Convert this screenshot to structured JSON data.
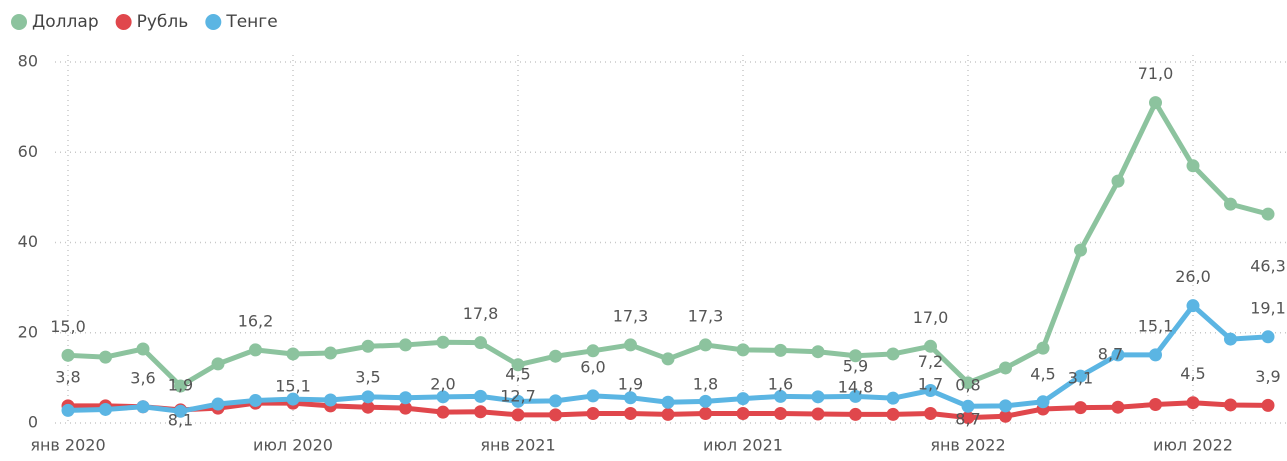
{
  "chart_data": {
    "type": "line",
    "categories": [
      "янв 2020",
      null,
      null,
      null,
      null,
      null,
      "июл 2020",
      null,
      null,
      null,
      null,
      null,
      "янв 2021",
      null,
      null,
      null,
      null,
      null,
      "июл 2021",
      null,
      null,
      null,
      null,
      null,
      "янв 2022",
      null,
      null,
      null,
      null,
      null,
      "июл 2022",
      null,
      null
    ],
    "series": [
      {
        "name": "Доллар",
        "color": "#8cc39e",
        "values": [
          15.0,
          14.6,
          16.4,
          8.2,
          13.1,
          16.2,
          15.3,
          15.5,
          17.0,
          17.3,
          17.9,
          17.8,
          12.9,
          14.8,
          16.0,
          17.3,
          14.2,
          17.3,
          16.2,
          16.1,
          15.8,
          14.9,
          15.3,
          17.0,
          8.9,
          12.2,
          16.6,
          38.3,
          53.6,
          71.0,
          57.0,
          48.5,
          46.3
        ],
        "value_labels": [
          "15,0",
          null,
          null,
          null,
          null,
          "16,2",
          null,
          null,
          null,
          null,
          null,
          "17,8",
          null,
          null,
          null,
          "17,3",
          null,
          "17,3",
          null,
          null,
          null,
          null,
          null,
          "17,0",
          null,
          null,
          null,
          null,
          null,
          "71,0",
          null,
          null,
          "46,3"
        ]
      },
      {
        "name": "Рубль",
        "color": "#e0474c",
        "values": [
          3.8,
          3.8,
          3.6,
          2.9,
          3.3,
          4.4,
          4.4,
          3.8,
          3.5,
          3.3,
          2.4,
          2.5,
          1.8,
          1.8,
          2.1,
          2.1,
          1.9,
          2.1,
          2.1,
          2.1,
          2.0,
          1.9,
          1.9,
          2.1,
          1.2,
          1.5,
          3.1,
          3.4,
          3.5,
          4.1,
          4.5,
          4.0,
          3.9
        ],
        "value_labels": [
          "3,8",
          null,
          "3,6",
          null,
          null,
          null,
          null,
          null,
          null,
          null,
          null,
          null,
          null,
          null,
          null,
          null,
          null,
          null,
          null,
          null,
          null,
          null,
          null,
          null,
          null,
          null,
          null,
          null,
          null,
          null,
          "4,5",
          null,
          "3,9"
        ]
      },
      {
        "name": "Тенге",
        "color": "#5bb5e3",
        "values": [
          2.8,
          3.0,
          3.6,
          2.6,
          4.2,
          5.0,
          5.3,
          5.1,
          5.8,
          5.6,
          5.8,
          5.9,
          4.8,
          4.9,
          6.0,
          5.6,
          4.6,
          4.8,
          5.4,
          5.9,
          5.8,
          5.9,
          5.5,
          7.2,
          3.7,
          3.8,
          4.7,
          10.4,
          15.1,
          15.1,
          26.0,
          18.6,
          19.1
        ],
        "value_labels": [
          null,
          null,
          null,
          null,
          null,
          null,
          null,
          null,
          null,
          null,
          null,
          null,
          null,
          null,
          null,
          null,
          null,
          null,
          null,
          null,
          null,
          null,
          null,
          "7,2",
          null,
          null,
          null,
          null,
          null,
          "15,1",
          "26,0",
          null,
          "19,1"
        ]
      }
    ],
    "annotations": [
      {
        "text": "1,9",
        "x": 3,
        "y": 8.2
      },
      {
        "text": "8,1",
        "x": 3,
        "y": 0.4
      },
      {
        "text": "15,1",
        "x": 6,
        "y": 8.0
      },
      {
        "text": "3,5",
        "x": 8,
        "y": 10.0
      },
      {
        "text": "2,0",
        "x": 10,
        "y": 8.4
      },
      {
        "text": "12,7",
        "x": 12,
        "y": 5.8
      },
      {
        "text": "4,5",
        "x": 12,
        "y": 10.6
      },
      {
        "text": "6,0",
        "x": 14,
        "y": 12.2
      },
      {
        "text": "1,9",
        "x": 15,
        "y": 8.4
      },
      {
        "text": "1,8",
        "x": 17,
        "y": 8.4
      },
      {
        "text": "1,6",
        "x": 19,
        "y": 8.4
      },
      {
        "text": "14,8",
        "x": 21,
        "y": 7.8
      },
      {
        "text": "5,9",
        "x": 21,
        "y": 12.4
      },
      {
        "text": "1,7",
        "x": 23,
        "y": 8.4
      },
      {
        "text": "0,8",
        "x": 24,
        "y": 8.2
      },
      {
        "text": "8,7",
        "x": 24,
        "y": 0.7
      },
      {
        "text": "4,5",
        "x": 26,
        "y": 10.6
      },
      {
        "text": "3,1",
        "x": 27,
        "y": 9.8
      },
      {
        "text": "8,7",
        "x": 27.8,
        "y": 15.1
      }
    ],
    "ylim": [
      0,
      80
    ],
    "yticks": [
      0,
      20,
      40,
      60,
      80
    ],
    "grid": true,
    "legend": "top-left"
  }
}
